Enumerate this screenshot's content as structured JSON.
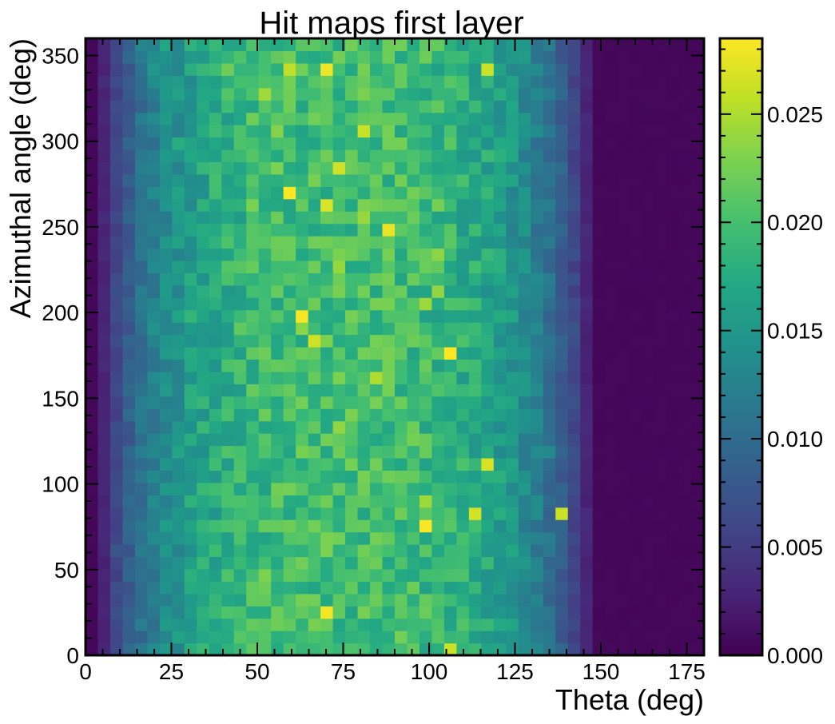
{
  "chart_data": {
    "type": "heatmap",
    "title": "Hit maps first layer",
    "xlabel": "Theta (deg)",
    "ylabel": "Azimuthal angle (deg)",
    "xlim": [
      0,
      180
    ],
    "ylim": [
      0,
      360
    ],
    "x_bin_width": 3.6,
    "y_bin_width": 7.2,
    "x_ticks": [
      "0",
      "25",
      "50",
      "75",
      "100",
      "125",
      "150",
      "175"
    ],
    "y_ticks": [
      "0",
      "50",
      "100",
      "150",
      "200",
      "250",
      "300",
      "350"
    ],
    "x_tick_values": [
      0,
      25,
      50,
      75,
      100,
      125,
      150,
      175
    ],
    "y_tick_values": [
      0,
      50,
      100,
      150,
      200,
      250,
      300,
      350
    ],
    "colorbar": {
      "colormap": "viridis",
      "min": 0.0,
      "max": 0.0285,
      "ticks": [
        "0.000",
        "0.005",
        "0.010",
        "0.015",
        "0.020",
        "0.025"
      ],
      "tick_values": [
        0.0,
        0.005,
        0.01,
        0.015,
        0.02,
        0.025
      ]
    },
    "theta_profile": {
      "description": "mean value per theta column (data units), columns of width 3.6 deg from 0 to 180",
      "values": [
        0.0005,
        0.003,
        0.006,
        0.0085,
        0.0105,
        0.012,
        0.0135,
        0.0148,
        0.0158,
        0.0166,
        0.0173,
        0.0179,
        0.0184,
        0.0188,
        0.0191,
        0.0193,
        0.0195,
        0.0196,
        0.0197,
        0.0198,
        0.0198,
        0.0198,
        0.0198,
        0.0197,
        0.0196,
        0.0195,
        0.0193,
        0.0191,
        0.0188,
        0.0184,
        0.0179,
        0.0173,
        0.0166,
        0.0158,
        0.0148,
        0.0135,
        0.012,
        0.0105,
        0.0085,
        0.006,
        0.003,
        0.0005,
        0.0005,
        0.0005,
        0.0005,
        0.0005,
        0.0005,
        0.0005,
        0.0005,
        0.0005
      ]
    },
    "hot_cells": [
      {
        "theta": 59.4,
        "phi": 268.2,
        "value": 0.0285
      },
      {
        "theta": 63.0,
        "phi": 199.8,
        "value": 0.0282
      },
      {
        "theta": 107.0,
        "phi": 178.2,
        "value": 0.0285
      },
      {
        "theta": 99.9,
        "phi": 77.4,
        "value": 0.0283
      },
      {
        "theta": 70.2,
        "phi": 27.0,
        "value": 0.028
      },
      {
        "theta": 68.4,
        "phi": 340.2,
        "value": 0.0278
      },
      {
        "theta": 86.4,
        "phi": 246.6,
        "value": 0.0276
      },
      {
        "theta": 68.4,
        "phi": 259.2,
        "value": 0.027
      },
      {
        "theta": 115.2,
        "phi": 111.6,
        "value": 0.0268
      },
      {
        "theta": 113.4,
        "phi": 82.8,
        "value": 0.0266
      },
      {
        "theta": 138.6,
        "phi": 82.8,
        "value": 0.0262
      },
      {
        "theta": 66.6,
        "phi": 183.6,
        "value": 0.0264
      },
      {
        "theta": 81.0,
        "phi": 306.0,
        "value": 0.0262
      },
      {
        "theta": 72.0,
        "phi": 286.2,
        "value": 0.0265
      },
      {
        "theta": 117.0,
        "phi": 342.0,
        "value": 0.0262
      },
      {
        "theta": 57.6,
        "phi": 340.2,
        "value": 0.0258
      },
      {
        "theta": 106.2,
        "phi": 3.6,
        "value": 0.0262
      }
    ],
    "legend": "none",
    "grid": false
  }
}
